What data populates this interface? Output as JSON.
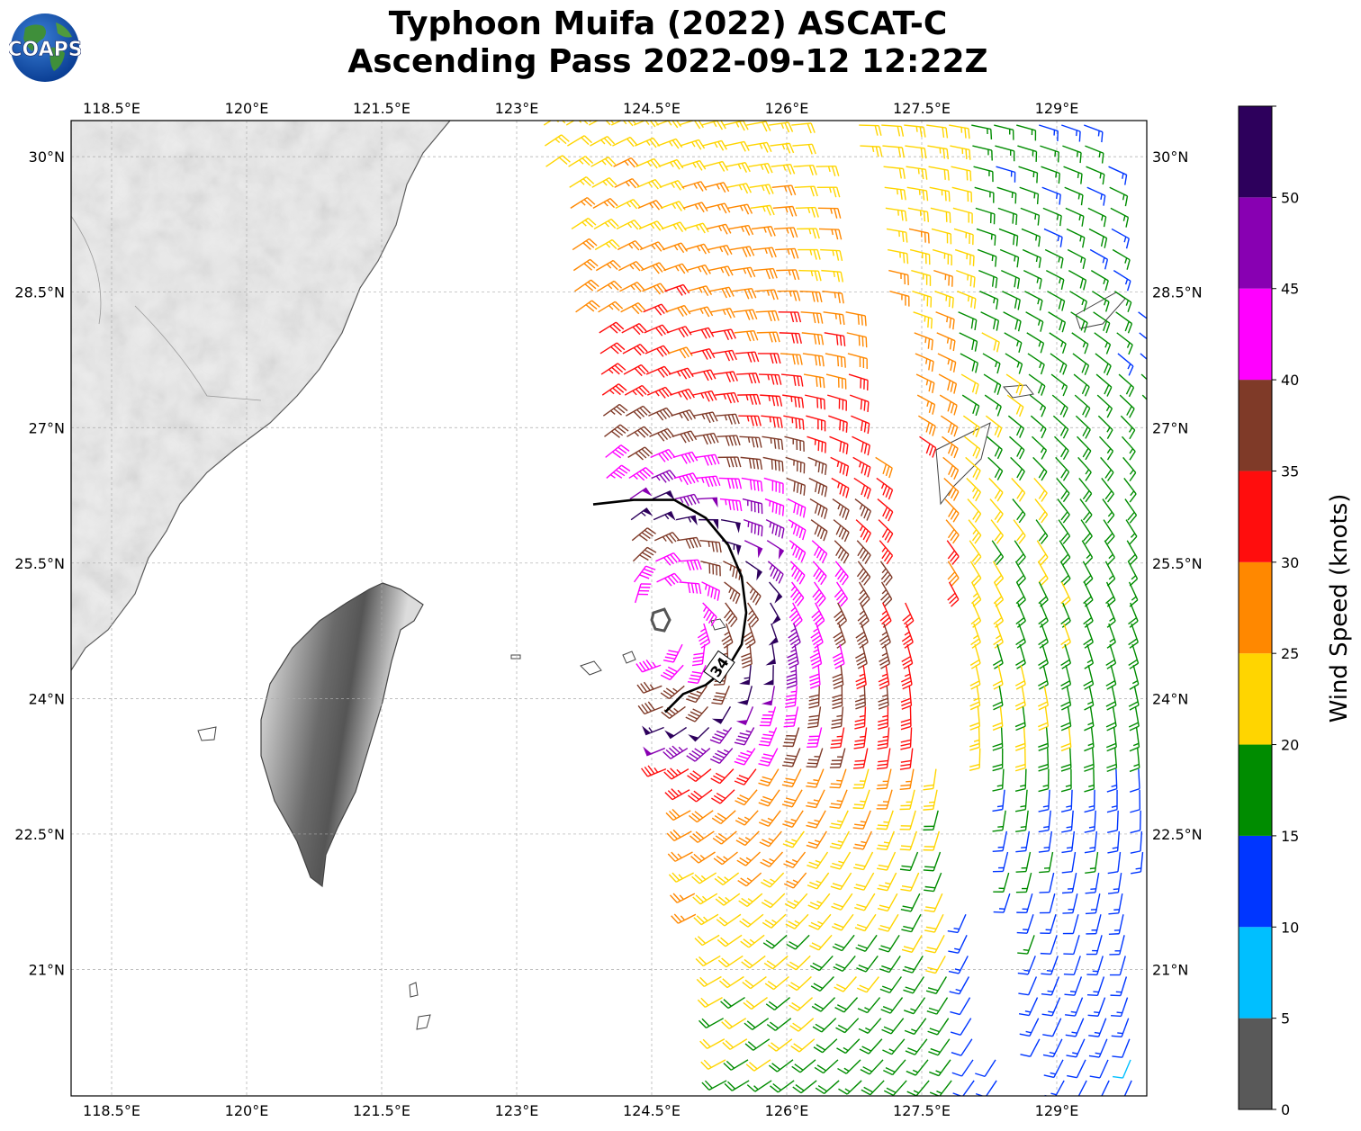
{
  "title": {
    "line1": "Typhoon Muifa (2022) ASCAT-C",
    "line2": "Ascending Pass 2022-09-12 12:22Z"
  },
  "logo": {
    "text": "COAPS"
  },
  "map": {
    "lon_range": [
      118.05,
      130.0
    ],
    "lat_range": [
      19.6,
      30.4
    ],
    "lon_ticks": [
      {
        "value": 118.5,
        "label": "118.5°E"
      },
      {
        "value": 120.0,
        "label": "120°E"
      },
      {
        "value": 121.5,
        "label": "121.5°E"
      },
      {
        "value": 123.0,
        "label": "123°E"
      },
      {
        "value": 124.5,
        "label": "124.5°E"
      },
      {
        "value": 126.0,
        "label": "126°E"
      },
      {
        "value": 127.5,
        "label": "127.5°E"
      },
      {
        "value": 129.0,
        "label": "129°E"
      }
    ],
    "lat_ticks": [
      {
        "value": 30.0,
        "label": "30°N"
      },
      {
        "value": 28.5,
        "label": "28.5°N"
      },
      {
        "value": 27.0,
        "label": "27°N"
      },
      {
        "value": 25.5,
        "label": "25.5°N"
      },
      {
        "value": 24.0,
        "label": "24°N"
      },
      {
        "value": 22.5,
        "label": "22.5°N"
      },
      {
        "value": 21.0,
        "label": "21°N"
      }
    ],
    "grid": true,
    "storm_center": {
      "lon": 124.6,
      "lat": 24.85
    },
    "contour_34kt": {
      "label": "34",
      "points": [
        [
          123.85,
          26.15
        ],
        [
          124.3,
          26.2
        ],
        [
          124.75,
          26.2
        ],
        [
          125.1,
          26.0
        ],
        [
          125.35,
          25.7
        ],
        [
          125.5,
          25.35
        ],
        [
          125.55,
          24.95
        ],
        [
          125.5,
          24.6
        ],
        [
          125.35,
          24.35
        ],
        [
          125.1,
          24.15
        ],
        [
          124.85,
          24.05
        ],
        [
          124.65,
          23.85
        ]
      ]
    }
  },
  "colorbar": {
    "label": "Wind Speed (knots)",
    "levels": [
      0,
      5,
      10,
      15,
      20,
      25,
      30,
      35,
      40,
      45,
      50,
      55
    ],
    "tick_labels": [
      "0",
      "5",
      "10",
      "15",
      "20",
      "25",
      "30",
      "35",
      "40",
      "45",
      "50"
    ],
    "colors": [
      "#595959",
      "#00bfff",
      "#0036ff",
      "#008c00",
      "#ffd500",
      "#ff8800",
      "#ff0d0d",
      "#7f3a28",
      "#ff00ff",
      "#8800b2",
      "#2d005c"
    ]
  },
  "colors": {
    "land": "#e6e6e6",
    "mountain": "#5a5a5a",
    "coast": "#555555",
    "grid": "#aaaaaa",
    "contour": "#000000"
  }
}
